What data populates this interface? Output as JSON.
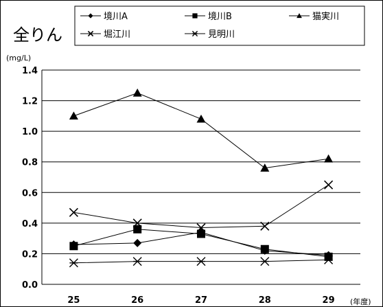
{
  "chart_data": {
    "type": "line",
    "title": "全りん",
    "ylabel": "(mg/L)",
    "xlabel": "(年度)",
    "categories": [
      "25",
      "26",
      "27",
      "28",
      "29"
    ],
    "ylim": [
      0,
      1.4
    ],
    "yticks": [
      "0.0",
      "0.2",
      "0.4",
      "0.6",
      "0.8",
      "1.0",
      "1.2",
      "1.4"
    ],
    "grid": true,
    "legend_position": "top",
    "series": [
      {
        "name": "境川A",
        "marker": "diamond",
        "values": [
          0.26,
          0.27,
          0.34,
          0.22,
          0.19
        ]
      },
      {
        "name": "境川B",
        "marker": "square",
        "values": [
          0.25,
          0.36,
          0.33,
          0.23,
          0.18
        ]
      },
      {
        "name": "猫実川",
        "marker": "triangle",
        "values": [
          1.1,
          1.25,
          1.08,
          0.76,
          0.82
        ]
      },
      {
        "name": "堀江川",
        "marker": "x",
        "values": [
          0.47,
          0.4,
          0.37,
          0.38,
          0.65
        ]
      },
      {
        "name": "見明川",
        "marker": "asterisk",
        "values": [
          0.14,
          0.15,
          0.15,
          0.15,
          0.16
        ]
      }
    ]
  }
}
